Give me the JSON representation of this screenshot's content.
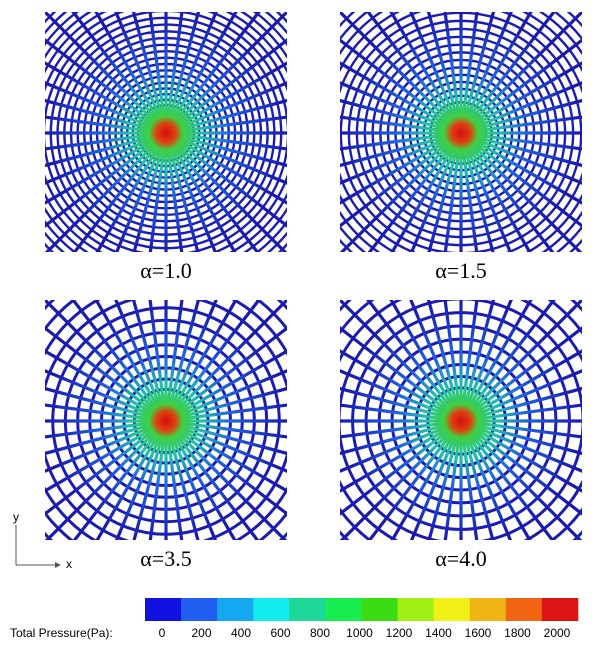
{
  "panels": [
    {
      "label": "α=1.0"
    },
    {
      "label": "α=1.5"
    },
    {
      "label": "α=3.5"
    },
    {
      "label": "α=4.0"
    }
  ],
  "axes": {
    "y": "y",
    "x": "x"
  },
  "colorbar": {
    "label": "Total Pressure(Pa):",
    "ticks": [
      0,
      200,
      400,
      600,
      800,
      1000,
      1200,
      1400,
      1600,
      1800,
      2000
    ],
    "colors": [
      "#1212e0",
      "#1f5ef0",
      "#14a8f0",
      "#10ecec",
      "#1ed898",
      "#18ee50",
      "#3cdc14",
      "#a0ee14",
      "#f0f014",
      "#f0b414",
      "#f06414",
      "#dc1414"
    ]
  }
}
